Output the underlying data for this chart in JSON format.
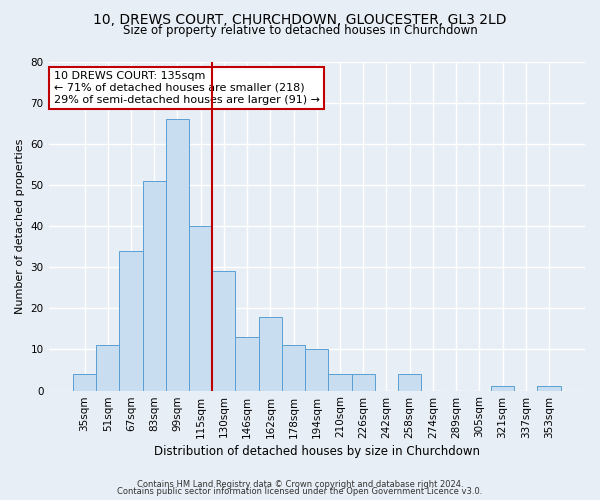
{
  "title": "10, DREWS COURT, CHURCHDOWN, GLOUCESTER, GL3 2LD",
  "subtitle": "Size of property relative to detached houses in Churchdown",
  "xlabel": "Distribution of detached houses by size in Churchdown",
  "ylabel": "Number of detached properties",
  "bar_labels": [
    "35sqm",
    "51sqm",
    "67sqm",
    "83sqm",
    "99sqm",
    "115sqm",
    "130sqm",
    "146sqm",
    "162sqm",
    "178sqm",
    "194sqm",
    "210sqm",
    "226sqm",
    "242sqm",
    "258sqm",
    "274sqm",
    "289sqm",
    "305sqm",
    "321sqm",
    "337sqm",
    "353sqm"
  ],
  "bar_values": [
    4,
    11,
    34,
    51,
    66,
    40,
    29,
    13,
    18,
    11,
    10,
    4,
    4,
    0,
    4,
    0,
    0,
    0,
    1,
    0,
    1
  ],
  "bar_color": "#c9ddf0",
  "bar_edge_color": "#5a9fd4",
  "vline_color": "#c00000",
  "annotation_text": "10 DREWS COURT: 135sqm\n← 71% of detached houses are smaller (218)\n29% of semi-detached houses are larger (91) →",
  "annotation_box_color": "#ffffff",
  "annotation_box_edge": "#c00000",
  "ylim": [
    0,
    80
  ],
  "yticks": [
    0,
    10,
    20,
    30,
    40,
    50,
    60,
    70,
    80
  ],
  "footer1": "Contains HM Land Registry data © Crown copyright and database right 2024.",
  "footer2": "Contains public sector information licensed under the Open Government Licence v3.0.",
  "bg_color": "#e8eef5",
  "grid_color": "#ffffff",
  "title_fontsize": 10,
  "subtitle_fontsize": 8.5
}
